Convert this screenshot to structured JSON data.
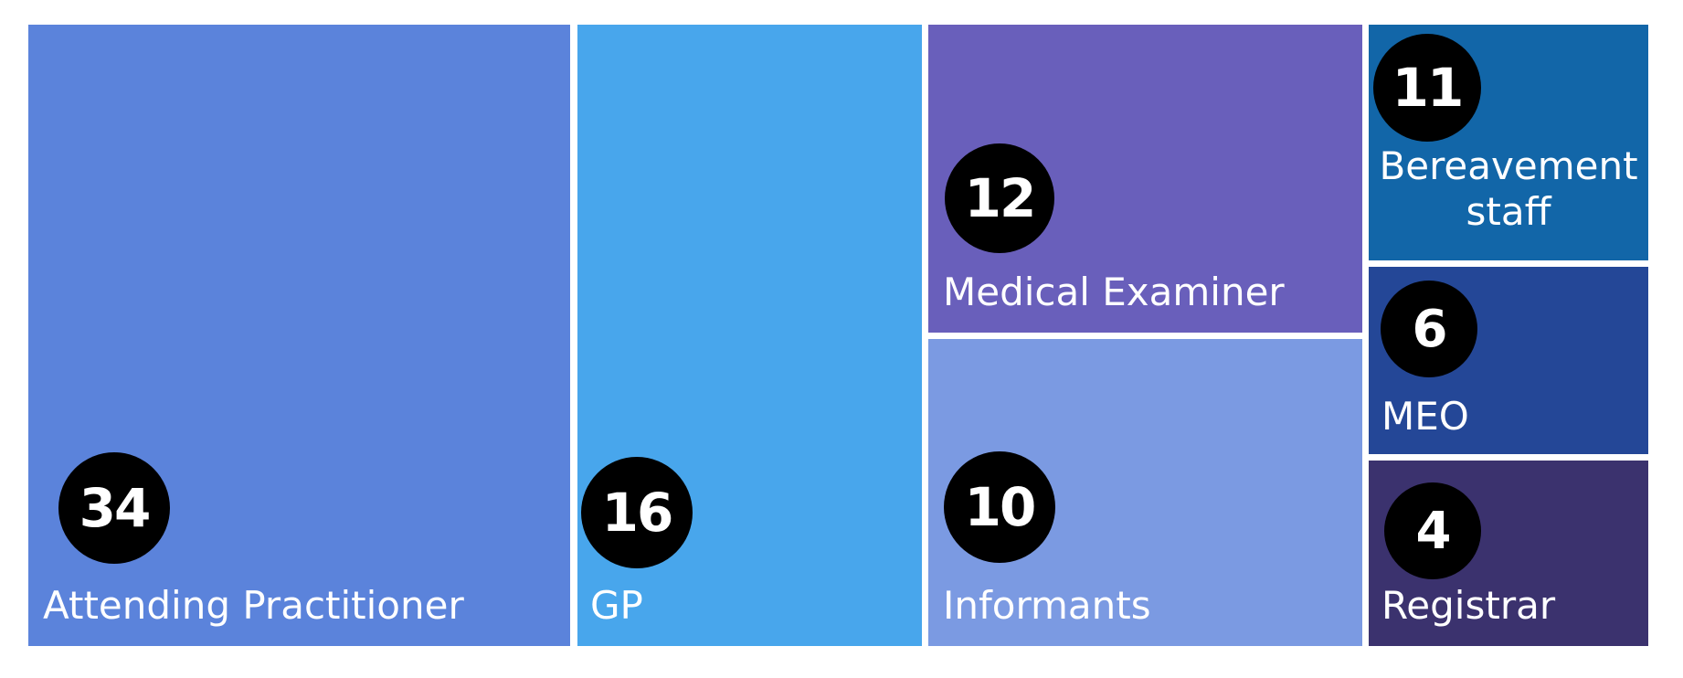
{
  "chart_data": {
    "type": "treemap",
    "items": [
      {
        "name": "Attending Practitioner",
        "value": 34,
        "color": "#5B83DB"
      },
      {
        "name": "GP",
        "value": 16,
        "color": "#48A6EC"
      },
      {
        "name": "Medical Examiner",
        "value": 12,
        "color": "#695FBB"
      },
      {
        "name": "Informants",
        "value": 10,
        "color": "#7B9AE2"
      },
      {
        "name": "Bereavement staff",
        "value": 11,
        "color": "#1266A8"
      },
      {
        "name": "MEO",
        "value": 6,
        "color": "#244797"
      },
      {
        "name": "Registrar",
        "value": 4,
        "color": "#3B326E"
      }
    ]
  }
}
